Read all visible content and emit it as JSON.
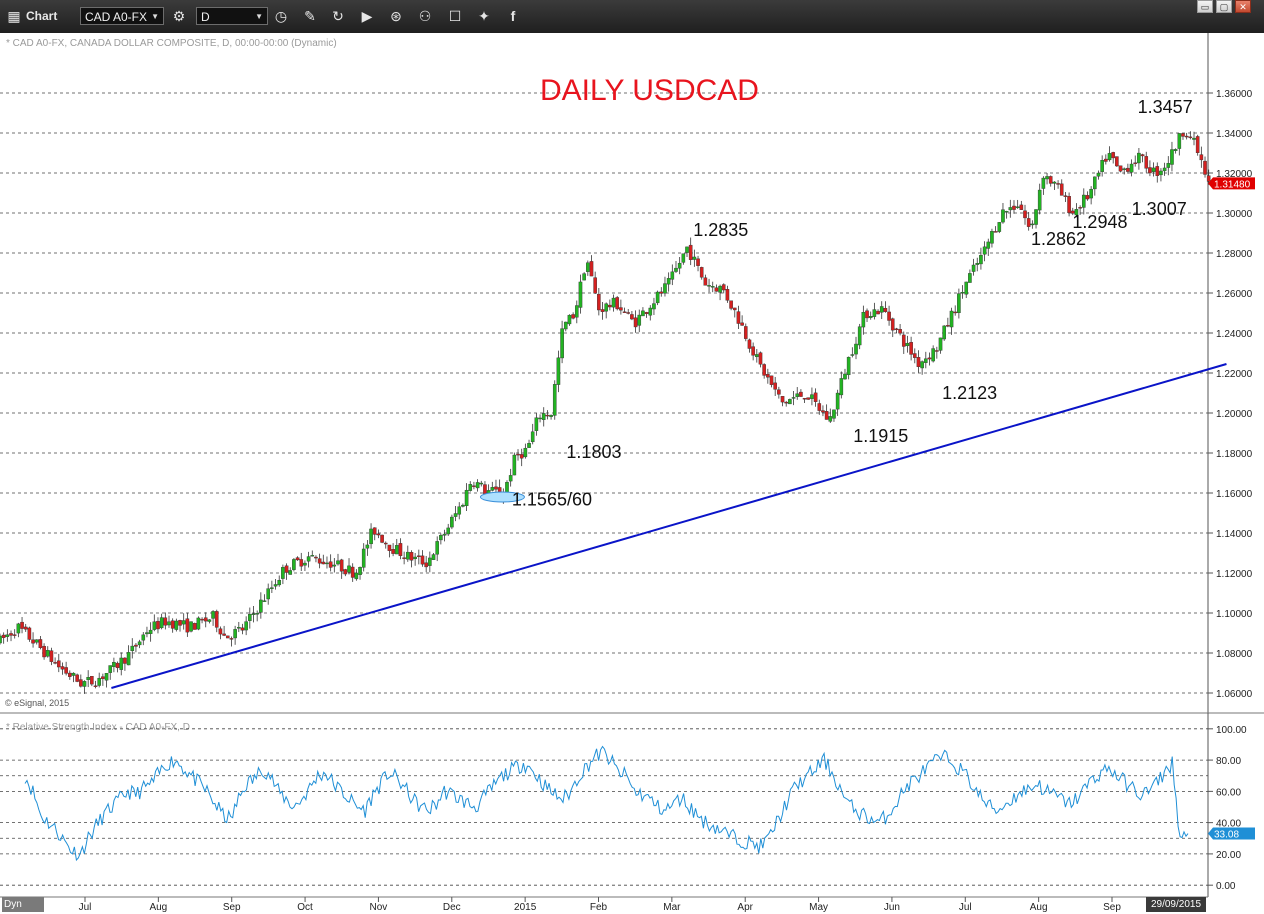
{
  "toolbar": {
    "title": "Chart",
    "symbol": "CAD A0-FX",
    "interval": "D",
    "icons": [
      "chart-icon",
      "settings-icon",
      "clock-icon",
      "pencil-icon",
      "refresh-icon",
      "play-icon",
      "alert-icon",
      "link-icon",
      "comment-icon",
      "twitter-icon",
      "facebook-icon"
    ]
  },
  "chart_header": "* CAD A0-FX, CANADA DOLLAR COMPOSITE, D, 00:00-00:00 (Dynamic)",
  "rsi_header": "* Relative Strength Index - CAD A0-FX, D",
  "copyright": "© eSignal, 2015",
  "dyn_label": "Dyn",
  "date_badge": "29/09/2015",
  "colors": {
    "up": "#22b322",
    "down": "#d42020",
    "trendline": "#0a14c8",
    "rsi": "#1f8fd6",
    "title": "#e8141e",
    "last_price_bg": "#e00000",
    "rsi_badge_bg": "#1f8fd6"
  },
  "chart_data": [
    {
      "type": "candlestick",
      "title": "DAILY USDCAD",
      "ylim": [
        1.05,
        1.385
      ],
      "y_ticks": [
        "1.36000",
        "1.34000",
        "1.32000",
        "1.30000",
        "1.28000",
        "1.26000",
        "1.24000",
        "1.22000",
        "1.20000",
        "1.18000",
        "1.16000",
        "1.14000",
        "1.12000",
        "1.10000",
        "1.08000",
        "1.06000"
      ],
      "x_ticks": [
        "Jul",
        "Aug",
        "Sep",
        "Oct",
        "Nov",
        "Dec",
        "2015",
        "Feb",
        "Mar",
        "Apr",
        "May",
        "Jun",
        "Jul",
        "Aug",
        "Sep"
      ],
      "x_tick_pos": [
        0.06,
        0.12,
        0.18,
        0.24,
        0.3,
        0.36,
        0.42,
        0.48,
        0.54,
        0.6,
        0.66,
        0.71,
        0.77,
        0.83,
        0.89
      ],
      "last_price": "1.31480",
      "price_path": [
        [
          0.0,
          1.086
        ],
        [
          0.015,
          1.093
        ],
        [
          0.03,
          1.085
        ],
        [
          0.05,
          1.073
        ],
        [
          0.068,
          1.065
        ],
        [
          0.08,
          1.066
        ],
        [
          0.095,
          1.072
        ],
        [
          0.11,
          1.08
        ],
        [
          0.125,
          1.092
        ],
        [
          0.14,
          1.096
        ],
        [
          0.16,
          1.093
        ],
        [
          0.18,
          1.098
        ],
        [
          0.19,
          1.088
        ],
        [
          0.205,
          1.092
        ],
        [
          0.22,
          1.105
        ],
        [
          0.24,
          1.122
        ],
        [
          0.26,
          1.128
        ],
        [
          0.28,
          1.125
        ],
        [
          0.3,
          1.12
        ],
        [
          0.315,
          1.142
        ],
        [
          0.33,
          1.133
        ],
        [
          0.345,
          1.128
        ],
        [
          0.36,
          1.125
        ],
        [
          0.375,
          1.14
        ],
        [
          0.39,
          1.155
        ],
        [
          0.398,
          1.167
        ],
        [
          0.41,
          1.161
        ],
        [
          0.425,
          1.16
        ],
        [
          0.435,
          1.178
        ],
        [
          0.445,
          1.182
        ],
        [
          0.455,
          1.199
        ],
        [
          0.465,
          1.2
        ],
        [
          0.475,
          1.243
        ],
        [
          0.485,
          1.25
        ],
        [
          0.495,
          1.278
        ],
        [
          0.505,
          1.252
        ],
        [
          0.52,
          1.255
        ],
        [
          0.535,
          1.245
        ],
        [
          0.55,
          1.255
        ],
        [
          0.565,
          1.265
        ],
        [
          0.58,
          1.283
        ],
        [
          0.595,
          1.265
        ],
        [
          0.61,
          1.262
        ],
        [
          0.625,
          1.245
        ],
        [
          0.64,
          1.225
        ],
        [
          0.66,
          1.205
        ],
        [
          0.68,
          1.21
        ],
        [
          0.7,
          1.196
        ],
        [
          0.715,
          1.225
        ],
        [
          0.73,
          1.25
        ],
        [
          0.745,
          1.252
        ],
        [
          0.76,
          1.238
        ],
        [
          0.775,
          1.225
        ],
        [
          0.79,
          1.232
        ],
        [
          0.8,
          1.245
        ],
        [
          0.815,
          1.265
        ],
        [
          0.83,
          1.28
        ],
        [
          0.845,
          1.3
        ],
        [
          0.86,
          1.305
        ],
        [
          0.87,
          1.29
        ],
        [
          0.88,
          1.32
        ],
        [
          0.893,
          1.312
        ],
        [
          0.905,
          1.3
        ],
        [
          0.92,
          1.31
        ],
        [
          0.935,
          1.33
        ],
        [
          0.945,
          1.32
        ],
        [
          0.96,
          1.328
        ],
        [
          0.975,
          1.32
        ],
        [
          0.985,
          1.325
        ],
        [
          1.0,
          1.343
        ],
        [
          1.01,
          1.332
        ],
        [
          1.02,
          1.314
        ]
      ],
      "annotations": [
        {
          "text": "1.3457",
          "x": 0.96,
          "y": 1.35
        },
        {
          "text": "1.3007",
          "x": 0.955,
          "y": 1.299
        },
        {
          "text": "1.2948",
          "x": 0.905,
          "y": 1.2925
        },
        {
          "text": "1.2862",
          "x": 0.87,
          "y": 1.284
        },
        {
          "text": "1.2835",
          "x": 0.585,
          "y": 1.2885
        },
        {
          "text": "1.2123",
          "x": 0.795,
          "y": 1.207
        },
        {
          "text": "1.1915",
          "x": 0.72,
          "y": 1.1855
        },
        {
          "text": "1.1803",
          "x": 0.478,
          "y": 1.1775
        },
        {
          "text": "1.1565/60",
          "x": 0.432,
          "y": 1.1538
        }
      ],
      "trendline": [
        [
          0.094,
          1.0625
        ],
        [
          1.035,
          1.2245
        ]
      ],
      "highlight_ellipse": {
        "x": 0.424,
        "y": 1.158
      }
    },
    {
      "type": "line",
      "title": "Relative Strength Index",
      "ylim": [
        -5,
        105
      ],
      "y_ticks": [
        "100.00",
        "80.00",
        "60.00",
        "40.00",
        "20.00",
        "0.00"
      ],
      "last_value": "33.08",
      "series": [
        {
          "values": [
            70,
            60,
            45,
            40,
            35,
            28,
            22,
            20,
            30,
            38,
            45,
            50,
            55,
            60,
            58,
            62,
            65,
            72,
            78,
            80,
            75,
            70,
            65,
            60,
            52,
            45,
            42,
            55,
            65,
            68,
            75,
            70,
            60,
            55,
            50,
            55,
            62,
            70,
            72,
            65,
            60,
            55,
            50,
            48,
            58,
            65,
            72,
            68,
            62,
            55,
            50,
            48,
            52,
            60,
            58,
            55,
            52,
            50,
            56,
            62,
            68,
            72,
            75,
            78,
            74,
            68,
            62,
            58,
            55,
            60,
            70,
            76,
            82,
            85,
            80,
            72,
            70,
            60,
            58,
            55,
            50,
            48,
            52,
            56,
            50,
            45,
            40,
            38,
            35,
            32,
            30,
            28,
            26,
            25,
            30,
            40,
            50,
            60,
            66,
            70,
            75,
            80,
            72,
            62,
            52,
            48,
            45,
            42,
            40,
            45,
            52,
            60,
            66,
            70,
            75,
            79,
            82,
            80,
            75,
            70,
            62,
            55,
            50,
            48,
            52,
            56,
            60,
            62,
            65,
            60,
            58,
            55,
            52,
            56,
            62,
            68,
            72,
            75,
            70,
            66,
            62,
            58,
            60,
            65,
            72,
            78,
            30,
            33
          ]
        }
      ]
    }
  ]
}
